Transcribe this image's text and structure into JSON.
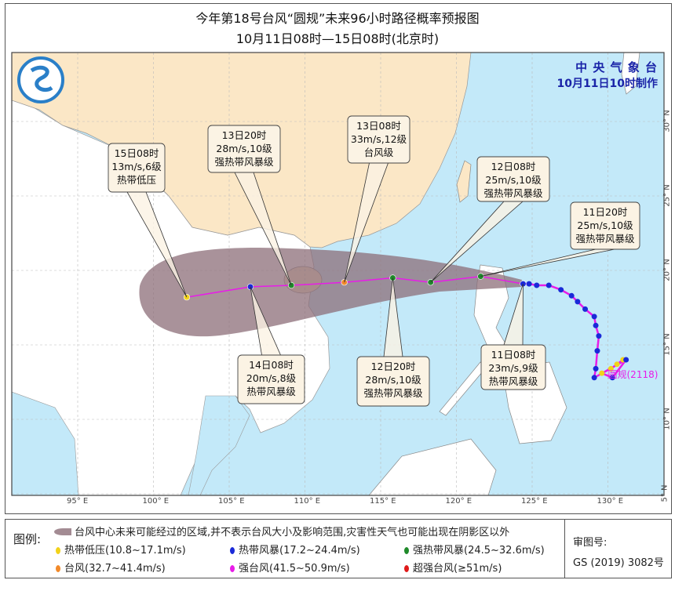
{
  "header": {
    "title": "今年第18号台风“圆规”未来96小时路径概率预报图",
    "subtitle": "10月11日08时—15日08时(北京时)"
  },
  "agency": {
    "name": "中 央 气 象 台",
    "issued": "10月11日10时制作",
    "logo": "cma-logo"
  },
  "colors": {
    "sea": "#c3e9f9",
    "china": "#fbe7c6",
    "other_land": "#ffffff",
    "cone": "#8c6e78",
    "track": "#e81ce8",
    "td": "#f2d21a",
    "ts": "#1a2ad8",
    "sts": "#1f8a2a",
    "ty": "#f28a2a",
    "sty": "#e81ce8",
    "superty": "#e01a1a"
  },
  "axes": {
    "lon_labels": [
      "95° E",
      "100° E",
      "105° E",
      "110° E",
      "115° E",
      "120° E",
      "125° E",
      "130° E"
    ],
    "lon_values": [
      95,
      100,
      105,
      110,
      115,
      120,
      125,
      130
    ],
    "lat_labels": [
      "30° N",
      "25° N",
      "20° N",
      "15° N",
      "10° N",
      "5° N"
    ],
    "lat_values": [
      30,
      25,
      20,
      15,
      10,
      5
    ]
  },
  "storm": {
    "name_label": "圆规(2118)",
    "name_lon": 130.0,
    "name_lat": 13.0
  },
  "forecast": [
    {
      "time": "11日08时",
      "wind": "23m/s,9级",
      "level": "热带风暴级",
      "cls": "ts",
      "lon": 124.4,
      "lat": 19.1
    },
    {
      "time": "11日20时",
      "wind": "25m/s,10级",
      "level": "强热带风暴级",
      "cls": "sts",
      "lon": 121.6,
      "lat": 19.6
    },
    {
      "time": "12日08时",
      "wind": "25m/s,10级",
      "level": "强热带风暴级",
      "cls": "sts",
      "lon": 118.3,
      "lat": 19.2
    },
    {
      "time": "12日20时",
      "wind": "28m/s,10级",
      "level": "强热带风暴级",
      "cls": "sts",
      "lon": 115.8,
      "lat": 19.5
    },
    {
      "time": "13日08时",
      "wind": "33m/s,12级",
      "level": "台风级",
      "cls": "ty",
      "lon": 112.6,
      "lat": 19.2
    },
    {
      "time": "13日20时",
      "wind": "28m/s,10级",
      "level": "强热带风暴级",
      "cls": "sts",
      "lon": 109.1,
      "lat": 19.0
    },
    {
      "time": "14日08时",
      "wind": "20m/s,8级",
      "level": "热带风暴级",
      "cls": "ts",
      "lon": 106.4,
      "lat": 18.9
    },
    {
      "time": "15日08时",
      "wind": "13m/s,6级",
      "level": "热带低压",
      "cls": "td",
      "lon": 102.2,
      "lat": 18.2
    }
  ],
  "past_track": [
    {
      "lon": 131.0,
      "lat": 14.0,
      "cls": "td"
    },
    {
      "lon": 130.6,
      "lat": 13.7,
      "cls": "td"
    },
    {
      "lon": 130.2,
      "lat": 13.4,
      "cls": "td"
    },
    {
      "lon": 129.6,
      "lat": 13.1,
      "cls": "td"
    },
    {
      "lon": 130.3,
      "lat": 12.8,
      "cls": "ts"
    },
    {
      "lon": 131.2,
      "lat": 14.0,
      "cls": "ts"
    },
    {
      "lon": 129.1,
      "lat": 12.8,
      "cls": "ts"
    },
    {
      "lon": 129.2,
      "lat": 13.4,
      "cls": "ts"
    },
    {
      "lon": 129.3,
      "lat": 14.6,
      "cls": "ts"
    },
    {
      "lon": 129.4,
      "lat": 15.6,
      "cls": "ts"
    },
    {
      "lon": 129.2,
      "lat": 16.3,
      "cls": "ts"
    },
    {
      "lon": 129.1,
      "lat": 16.9,
      "cls": "ts"
    },
    {
      "lon": 128.5,
      "lat": 17.4,
      "cls": "ts"
    },
    {
      "lon": 128.0,
      "lat": 17.9,
      "cls": "ts"
    },
    {
      "lon": 127.6,
      "lat": 18.3,
      "cls": "ts"
    },
    {
      "lon": 126.9,
      "lat": 18.7,
      "cls": "ts"
    },
    {
      "lon": 126.1,
      "lat": 19.0,
      "cls": "ts"
    },
    {
      "lon": 125.3,
      "lat": 19.0,
      "cls": "ts"
    },
    {
      "lon": 124.8,
      "lat": 19.1,
      "cls": "ts"
    },
    {
      "lon": 124.4,
      "lat": 19.1,
      "cls": "ts"
    }
  ],
  "legend": {
    "title": "图例:",
    "cone_note": "台风中心未来可能经过的区域,并不表示台风大小及影响范围,灾害性天气也可能出现在阴影区以外",
    "items": [
      {
        "label": "热带低压(10.8~17.1m/s)",
        "cls": "td"
      },
      {
        "label": "热带风暴(17.2~24.4m/s)",
        "cls": "ts"
      },
      {
        "label": "强热带风暴(24.5~32.6m/s)",
        "cls": "sts"
      },
      {
        "label": "台风(32.7~41.4m/s)",
        "cls": "ty"
      },
      {
        "label": "强台风(41.5~50.9m/s)",
        "cls": "sty"
      },
      {
        "label": "超强台风(≥51m/s)",
        "cls": "superty"
      }
    ],
    "approval_label": "审图号:",
    "approval_no": "GS (2019) 3082号"
  }
}
